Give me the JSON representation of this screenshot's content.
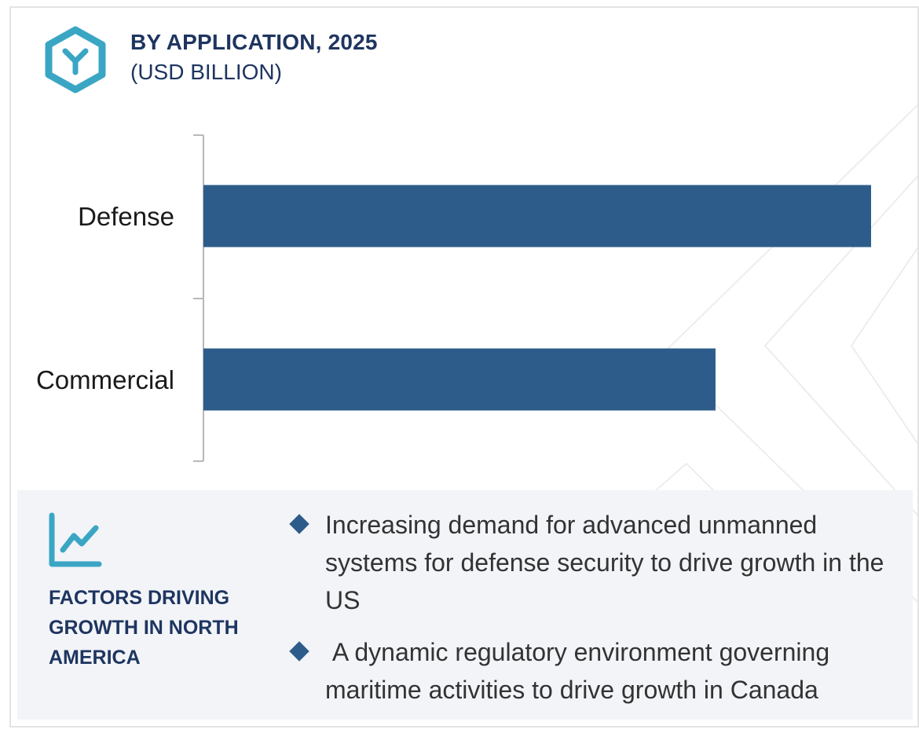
{
  "header": {
    "title": "BY APPLICATION, 2025",
    "subtitle": "(USD BILLION)"
  },
  "colors": {
    "bar": "#2d5c8a",
    "title": "#1e3560",
    "icon_teal": "#3aa6c4",
    "panel_bg": "#f2f4f8"
  },
  "chart_data": {
    "type": "bar",
    "orientation": "horizontal",
    "categories": [
      "Defense",
      "Commercial"
    ],
    "values": [
      1.0,
      0.767
    ],
    "title": "BY APPLICATION, 2025",
    "xlabel": "",
    "ylabel": "",
    "xlim": [
      0,
      1.0
    ],
    "grid": false,
    "legend": "none"
  },
  "factors": {
    "heading": "FACTORS DRIVING GROWTH IN NORTH AMERICA",
    "bullets": [
      "Increasing demand for advanced unmanned systems for defense security to drive growth in the US",
      " A dynamic regulatory environment governing maritime activities to drive growth in Canada"
    ]
  }
}
